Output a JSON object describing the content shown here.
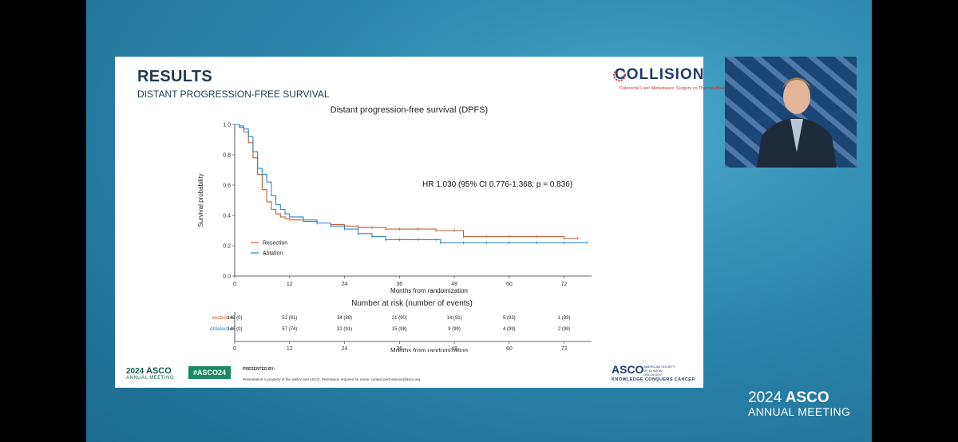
{
  "slide": {
    "title": "RESULTS",
    "subtitle": "DISTANT PROGRESSION-FREE SURVIVAL",
    "logo": {
      "word": "COLLISION",
      "tagline": "Colorectal Liver Metastases: Surgery vs Thermal Ablation"
    }
  },
  "chart_data": {
    "type": "line",
    "title": "Distant progression-free survival (DPFS)",
    "xlabel": "Months from randomization",
    "ylabel": "Survival probability",
    "xlim": [
      0,
      78
    ],
    "ylim": [
      0,
      1.0
    ],
    "x_ticks": [
      "0",
      "12",
      "24",
      "36",
      "48",
      "60",
      "72"
    ],
    "y_ticks": [
      "0.0",
      "0.2",
      "0.4",
      "0.6",
      "0.8",
      "1.0"
    ],
    "annotation": "HR 1.030 (95% CI 0.776-1.368; p = 0.836)",
    "legend_position": "bottom-left",
    "series": [
      {
        "name": "Resection",
        "color": "#c0603a",
        "x": [
          0,
          1,
          2,
          3,
          4,
          5,
          6,
          7,
          8,
          9,
          10,
          11,
          12,
          15,
          18,
          21,
          24,
          27,
          30,
          33,
          36,
          40,
          44,
          48,
          50,
          55,
          60,
          66,
          72,
          75
        ],
        "y": [
          1.0,
          0.98,
          0.95,
          0.88,
          0.78,
          0.67,
          0.57,
          0.49,
          0.44,
          0.41,
          0.39,
          0.38,
          0.37,
          0.36,
          0.35,
          0.34,
          0.33,
          0.32,
          0.32,
          0.31,
          0.31,
          0.31,
          0.3,
          0.3,
          0.26,
          0.26,
          0.26,
          0.26,
          0.25,
          0.25
        ]
      },
      {
        "name": "Ablation",
        "color": "#2e86c1",
        "x": [
          0,
          1,
          2,
          3,
          4,
          5,
          6,
          7,
          8,
          9,
          10,
          11,
          12,
          15,
          18,
          21,
          24,
          27,
          30,
          33,
          36,
          40,
          44,
          45,
          50,
          55,
          60,
          66,
          72,
          77
        ],
        "y": [
          1.0,
          0.99,
          0.97,
          0.92,
          0.82,
          0.71,
          0.67,
          0.62,
          0.53,
          0.47,
          0.44,
          0.41,
          0.39,
          0.37,
          0.35,
          0.33,
          0.31,
          0.28,
          0.26,
          0.24,
          0.24,
          0.24,
          0.24,
          0.22,
          0.22,
          0.22,
          0.22,
          0.22,
          0.22,
          0.22
        ]
      }
    ]
  },
  "risk_table": {
    "title": "Number at risk (number of events)",
    "xlabel": "Months from randomization",
    "x_ticks": [
      "0",
      "12",
      "24",
      "36",
      "48",
      "60",
      "72"
    ],
    "rows": [
      {
        "label": "section",
        "color": "#c0603a",
        "cells": [
          "148 (0)",
          "51 (81)",
          "34 (88)",
          "21 (90)",
          "14 (91)",
          "5 (93)",
          "1 (93)"
        ]
      },
      {
        "label": "Ablation",
        "color": "#2e86c1",
        "cells": [
          "148 (0)",
          "57 (74)",
          "32 (91)",
          "15 (98)",
          "9 (99)",
          "4 (99)",
          "2 (99)"
        ]
      }
    ]
  },
  "footer": {
    "year": "2024",
    "asco": "ASCO",
    "annual_meeting": "ANNUAL MEETING",
    "hashtag": "#ASCO24",
    "presented_by": "PRESENTED BY:",
    "property_note": "Presentation is property of the author and ASCO. Permission required for reuse; contact permissions@asco.org",
    "asco_logo": "ASCO",
    "asco_society": "AMERICAN SOCIETY OF CLINICAL ONCOLOGY",
    "asco_tagline": "KNOWLEDGE CONQUERS CANCER"
  },
  "brand": {
    "year": "2024",
    "asco": "ASCO",
    "annual_meeting": "ANNUAL MEETING"
  },
  "colors": {
    "background": "#2b86ad",
    "resection": "#c0603a",
    "ablation": "#2e86c1",
    "asco_green": "#0f5e4f"
  }
}
